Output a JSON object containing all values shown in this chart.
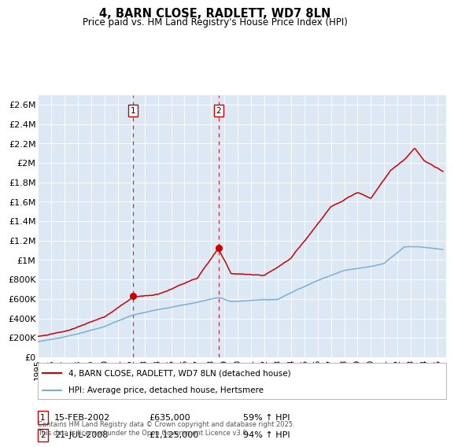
{
  "title": "4, BARN CLOSE, RADLETT, WD7 8LN",
  "subtitle": "Price paid vs. HM Land Registry's House Price Index (HPI)",
  "ylabel_ticks": [
    "£0",
    "£200K",
    "£400K",
    "£600K",
    "£800K",
    "£1M",
    "£1.2M",
    "£1.4M",
    "£1.6M",
    "£1.8M",
    "£2M",
    "£2.2M",
    "£2.4M",
    "£2.6M"
  ],
  "ytick_values": [
    0,
    200000,
    400000,
    600000,
    800000,
    1000000,
    1200000,
    1400000,
    1600000,
    1800000,
    2000000,
    2200000,
    2400000,
    2600000
  ],
  "ylim": [
    0,
    2700000
  ],
  "house_color": "#cc0000",
  "hpi_color": "#7bafd4",
  "background_color": "#dce9f5",
  "marker1_price": 635000,
  "marker1_label": "15-FEB-2002",
  "marker1_pct": "59% ↑ HPI",
  "marker2_price": 1125000,
  "marker2_label": "21-JUL-2008",
  "marker2_pct": "94% ↑ HPI",
  "legend_house": "4, BARN CLOSE, RADLETT, WD7 8LN (detached house)",
  "legend_hpi": "HPI: Average price, detached house, Hertsmere",
  "footer": "Contains HM Land Registry data © Crown copyright and database right 2025.\nThis data is licensed under the Open Government Licence v3.0."
}
